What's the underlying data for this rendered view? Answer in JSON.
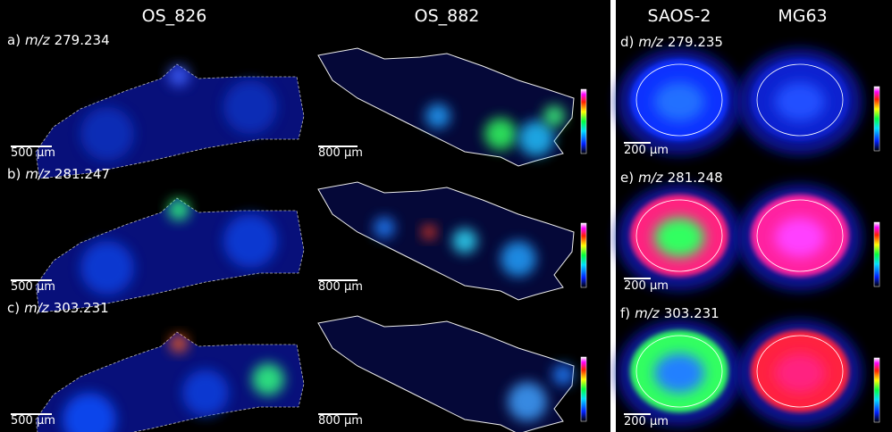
{
  "headers": {
    "left": [
      "OS_826",
      "OS_882"
    ],
    "right": [
      "SAOS-2",
      "MG63"
    ]
  },
  "left_panels": [
    {
      "label": "a)",
      "mz_prefix": "m/z",
      "mz": "279.234",
      "scale_left": "500 µm",
      "scale_right": "800 µm"
    },
    {
      "label": "b)",
      "mz_prefix": "m/z",
      "mz": "281.247",
      "scale_left": "500 µm",
      "scale_right": "800 µm"
    },
    {
      "label": "c)",
      "mz_prefix": "m/z",
      "mz": "303.231",
      "scale_left": "500 µm",
      "scale_right": "800 µm"
    }
  ],
  "right_panels": [
    {
      "label": "d)",
      "mz_prefix": "m/z",
      "mz": "279.235",
      "scale": "200 µm"
    },
    {
      "label": "e)",
      "mz_prefix": "m/z",
      "mz": "281.248",
      "scale": "200 µm"
    },
    {
      "label": "f)",
      "mz_prefix": "m/z",
      "mz": "303.231",
      "scale": "200 µm"
    }
  ]
}
